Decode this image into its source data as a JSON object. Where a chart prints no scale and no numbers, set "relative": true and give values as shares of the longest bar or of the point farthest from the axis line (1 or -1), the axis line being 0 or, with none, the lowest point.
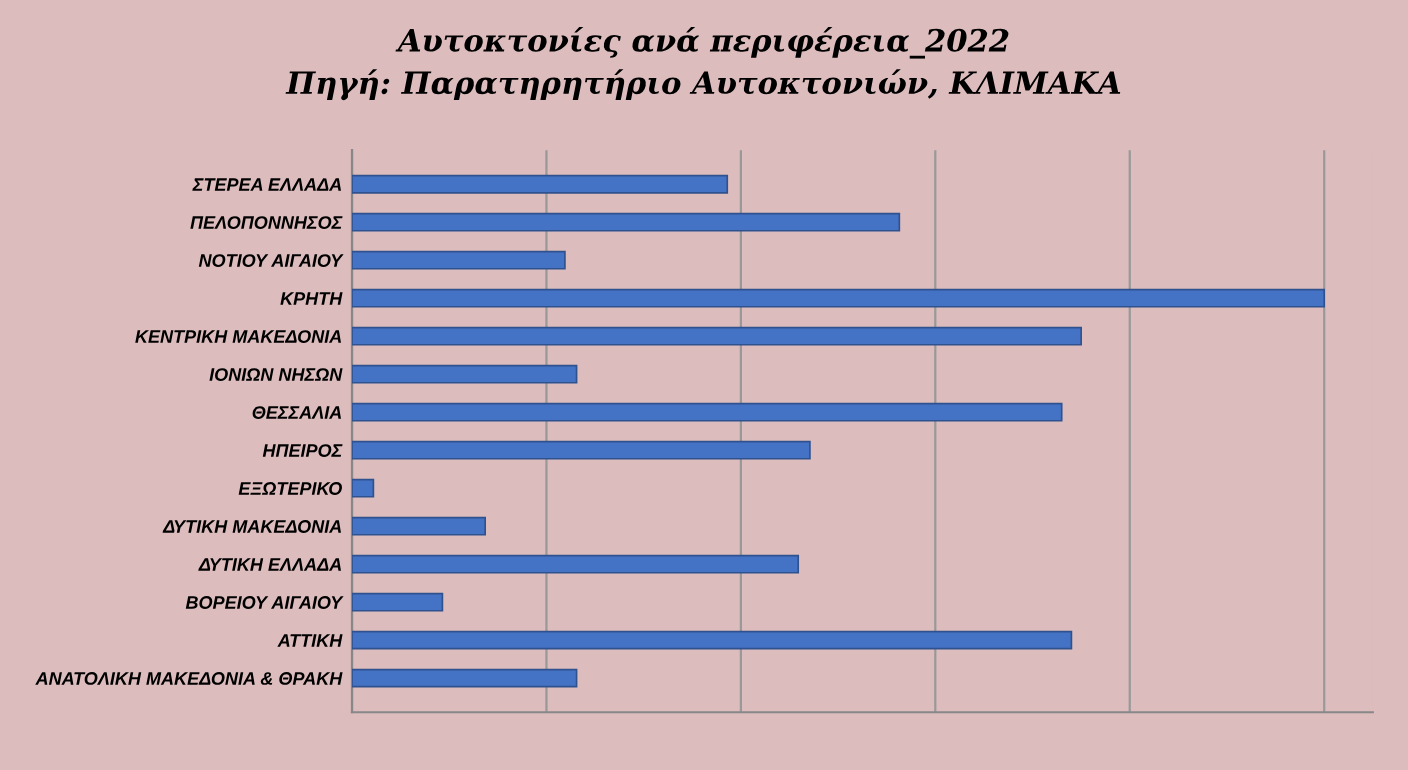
{
  "chart_data": {
    "type": "bar",
    "orientation": "horizontal",
    "relative": true,
    "title": "Αυτοκτονίες ανά περιφέρεια_2022",
    "subtitle": "Πηγή: Παρατηρητήριο Αυτοκτονιών, ΚΛΙΜΑΚΑ",
    "categories": [
      "ΣΤΕΡΕΑ ΕΛΛΑΔΑ",
      "ΠΕΛΟΠΟΝΝΗΣΟΣ",
      "ΝΟΤΙΟΥ ΑΙΓΑΙΟΥ",
      "ΚΡΗΤΗ",
      "ΚΕΝΤΡΙΚΗ ΜΑΚΕΔΟΝΙΑ",
      "ΙΟΝΙΩΝ ΝΗΣΩΝ",
      "ΘΕΣΣΑΛΙΑ",
      "ΗΠΕΙΡΟΣ",
      "ΕΞΩΤΕΡΙΚΟ",
      "ΔΥΤΙΚΗ ΜΑΚΕΔΟΝΙΑ",
      "ΔΥΤΙΚΗ ΕΛΛΑΔΑ",
      "ΒΟΡΕΙΟΥ ΑΙΓΑΙΟΥ",
      "ΑΤΤΙΚΗ",
      "ΑΝΑΤΟΛΙΚΗ ΜΑΚΕΔΟΝΙΑ & ΘΡΑΚΗ"
    ],
    "values": [
      0.386,
      0.563,
      0.219,
      1,
      0.75,
      0.231,
      0.73,
      0.471,
      0.022,
      0.137,
      0.459,
      0.093,
      0.74,
      0.231
    ],
    "color": "#4472c4",
    "grid": "x"
  }
}
